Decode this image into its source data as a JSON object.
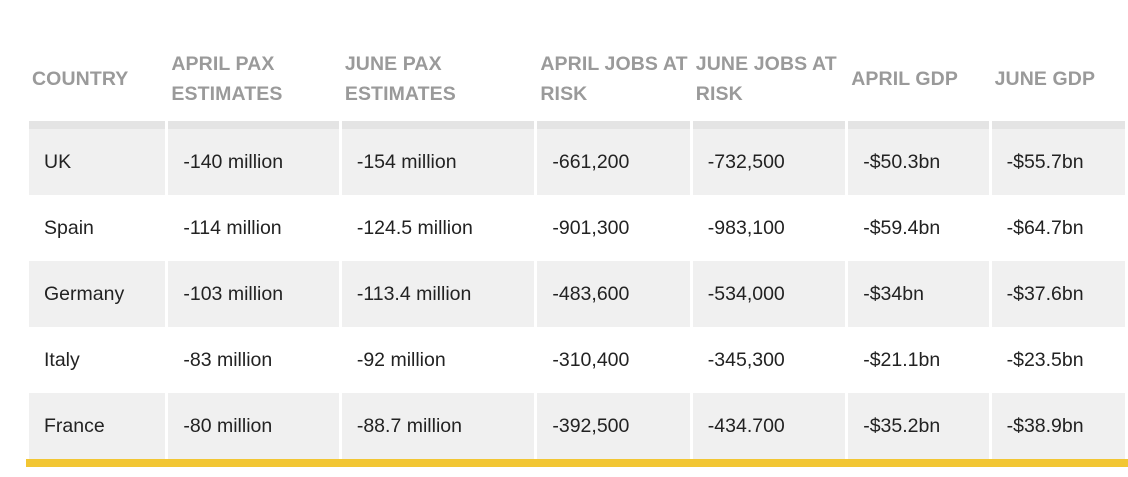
{
  "colors": {
    "header_text": "#9a9a9a",
    "row_shaded": "#f0f0f0",
    "accent_bar": "#f2c633"
  },
  "table": {
    "headers": [
      "COUNTRY",
      "APRIL PAX ESTIMATES",
      "JUNE PAX ESTIMATES",
      "APRIL JOBS AT RISK",
      "JUNE JOBS AT RISK",
      "APRIL GDP",
      "JUNE GDP"
    ],
    "rows": [
      [
        "UK",
        "-140 million",
        "-154 million",
        "-661,200",
        "-732,500",
        "-$50.3bn",
        "-$55.7bn"
      ],
      [
        "Spain",
        "-114 million",
        "-124.5 million",
        "-901,300",
        "-983,100",
        "-$59.4bn",
        "-$64.7bn"
      ],
      [
        "Germany",
        "-103 million",
        "-113.4 million",
        "-483,600",
        "-534,000",
        "-$34bn",
        "-$37.6bn"
      ],
      [
        "Italy",
        "-83 million",
        "-92 million",
        "-310,400",
        "-345,300",
        "-$21.1bn",
        "-$23.5bn"
      ],
      [
        "France",
        "-80 million",
        "-88.7 million",
        "-392,500",
        "-434.700",
        "-$35.2bn",
        "-$38.9bn"
      ]
    ]
  }
}
